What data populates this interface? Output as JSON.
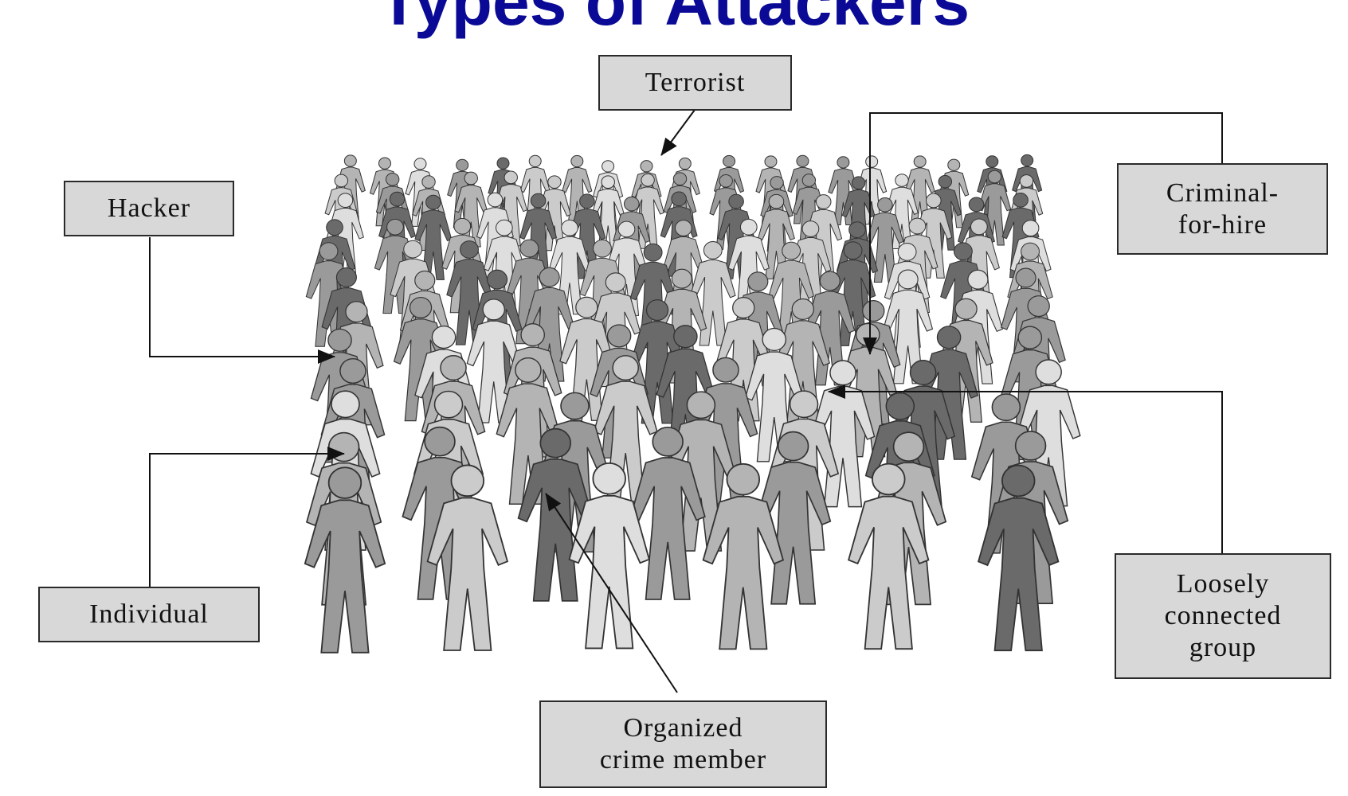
{
  "title": "Types of Attackers",
  "labels": {
    "terrorist": "Terrorist",
    "hacker": "Hacker",
    "criminal_for_hire": "Criminal-\nfor-hire",
    "individual": "Individual",
    "loosely_connected_group": "Loosely\nconnected\ngroup",
    "organized_crime_member": "Organized\ncrime member"
  },
  "colors": {
    "title": "#0a0a96",
    "box_fill": "#d8d8d8",
    "figure_shades": [
      "#6a6a6a",
      "#9a9a9a",
      "#b4b4b4",
      "#cbcbcb",
      "#dedede"
    ]
  }
}
